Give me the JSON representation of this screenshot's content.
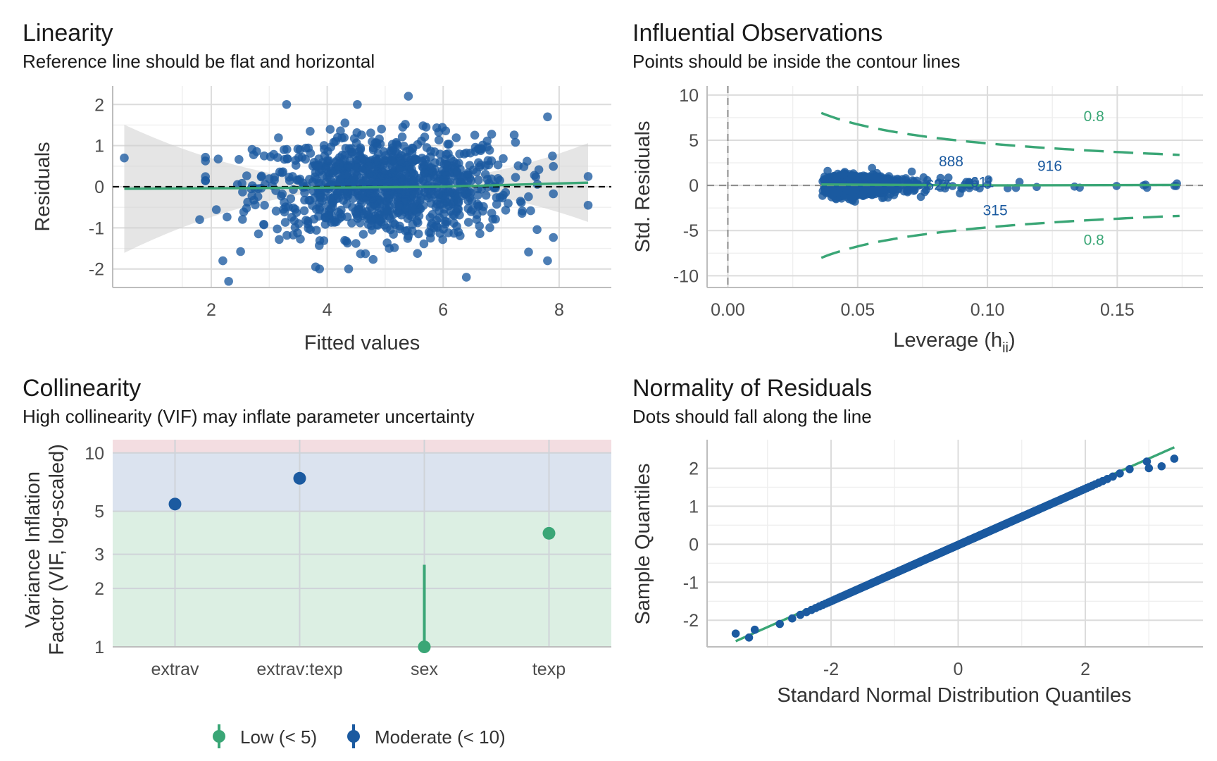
{
  "colors": {
    "points": "#1b5aa0",
    "fit": "#3aa676",
    "grid_major": "#dcdcdc",
    "grid_minor": "#efefef",
    "zone_low": "#dcefe3",
    "zone_moderate": "#dbe3ef",
    "zone_high": "#f3dde1"
  },
  "chart_data": [
    {
      "type": "scatter",
      "title": "Linearity",
      "subtitle": "Reference line should be flat and horizontal",
      "xlabel": "Fitted values",
      "ylabel": "Residuals",
      "xlim": [
        0.3,
        8.9
      ],
      "ylim": [
        -2.45,
        2.45
      ],
      "xticks": [
        2,
        4,
        6,
        8
      ],
      "yticks": [
        -2,
        -1,
        0,
        1,
        2
      ],
      "reference_line": 0,
      "smooth_line": [
        [
          0.5,
          -0.05
        ],
        [
          2,
          -0.04
        ],
        [
          4,
          -0.02
        ],
        [
          6,
          0.0
        ],
        [
          8.5,
          0.1
        ]
      ],
      "n_points": 1000,
      "point_cloud": {
        "x_center": 5.0,
        "x_sd": 1.1,
        "residual_sd": 0.62
      },
      "outlier_points": [
        [
          0.5,
          0.7
        ],
        [
          3.3,
          2.0
        ],
        [
          5.4,
          2.2
        ],
        [
          8.5,
          0.25
        ],
        [
          8.5,
          -0.45
        ],
        [
          2.3,
          -2.3
        ],
        [
          7.8,
          -1.8
        ],
        [
          2.2,
          -1.8
        ],
        [
          1.8,
          -0.8
        ],
        [
          6.4,
          -2.2
        ],
        [
          7.8,
          1.7
        ],
        [
          3.8,
          -1.95
        ]
      ]
    },
    {
      "type": "scatter",
      "title": "Influential Observations",
      "subtitle": "Points should be inside the contour lines",
      "xlabel": "Leverage (h",
      "xlabel_subscript": "ii",
      "xlabel_close": ")",
      "ylabel": "Std. Residuals",
      "xlim": [
        -0.008,
        0.183
      ],
      "ylim": [
        -11.3,
        11.0
      ],
      "xticks": [
        "0.00",
        "0.05",
        "0.10",
        "0.15"
      ],
      "xtick_values": [
        0,
        0.05,
        0.1,
        0.15
      ],
      "yticks": [
        -10,
        -5,
        0,
        5,
        10
      ],
      "cook_contour": 0.8,
      "contour_labels": [
        "0.8",
        "0.8"
      ],
      "n_points": 1000,
      "point_cloud": {
        "leverage_min": 0.036,
        "leverage_peak": 0.05,
        "std_resid_sd": 0.9
      },
      "labeled_points": [
        {
          "label": "888",
          "x": 0.086,
          "y": 2.1
        },
        {
          "label": "916",
          "x": 0.124,
          "y": 1.6
        },
        {
          "label": "315",
          "x": 0.103,
          "y": -3.3
        },
        {
          "label": "627",
          "x": 0.081,
          "y": -0.5
        },
        {
          "label": "611",
          "x": 0.098,
          "y": -0.2
        }
      ]
    },
    {
      "type": "dot",
      "title": "Collinearity",
      "subtitle": "High collinearity (VIF) may inflate parameter uncertainty",
      "ylabel": "Variance Inflation",
      "ylabel_line2": "Factor (VIF, log-scaled)",
      "yscale": "log",
      "ylim": [
        1,
        11.7
      ],
      "yticks": [
        1,
        2,
        3,
        5,
        10
      ],
      "zones": [
        {
          "name": "low",
          "from": 1,
          "to": 5
        },
        {
          "name": "moderate",
          "from": 5,
          "to": 10
        },
        {
          "name": "high",
          "from": 10,
          "to": 11.7
        }
      ],
      "categories": [
        "extrav",
        "extrav:texp",
        "sex",
        "texp"
      ],
      "values": [
        5.45,
        7.4,
        1.0,
        3.85
      ],
      "groups": [
        "Moderate (< 10)",
        "Moderate (< 10)",
        "Low (< 5)",
        "Low (< 5)"
      ],
      "ci_upper": [
        null,
        null,
        2.65,
        null
      ],
      "legend": [
        {
          "label": "Low (< 5)",
          "color": "#3aa676"
        },
        {
          "label": "Moderate (< 10)",
          "color": "#1b5aa0"
        }
      ],
      "legend_position": "bottom"
    },
    {
      "type": "scatter",
      "title": "Normality of Residuals",
      "subtitle": "Dots should fall along the line",
      "xlabel": "Standard Normal Distribution Quantiles",
      "ylabel": "Sample Quantiles",
      "xlim": [
        -3.95,
        3.85
      ],
      "ylim": [
        -2.7,
        2.75
      ],
      "xticks": [
        -2,
        0,
        2
      ],
      "yticks": [
        -2,
        -1,
        0,
        1,
        2
      ],
      "reference_line": [
        [
          -3.5,
          -2.55
        ],
        [
          3.4,
          2.55
        ]
      ],
      "n_points": 1000,
      "extreme_points": [
        [
          -3.5,
          -2.35
        ],
        [
          -3.2,
          -2.25
        ],
        [
          3.4,
          2.25
        ],
        [
          3.2,
          2.05
        ],
        [
          3.0,
          2.0
        ]
      ]
    }
  ]
}
